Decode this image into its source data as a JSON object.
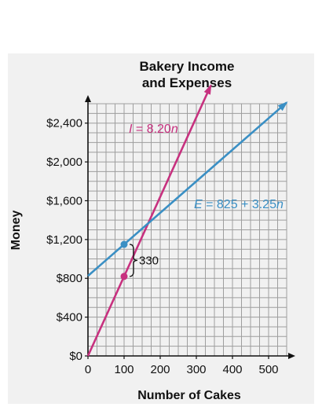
{
  "chart_data": {
    "type": "line",
    "title_lines": [
      "Bakery Income",
      "and Expenses"
    ],
    "xlabel": "Number of Cakes",
    "ylabel": "Money",
    "xlim": [
      0,
      550
    ],
    "ylim": [
      0,
      2600
    ],
    "x_ticks": [
      0,
      100,
      200,
      300,
      400,
      500
    ],
    "x_tick_labels": [
      "0",
      "100",
      "200",
      "300",
      "400",
      "500"
    ],
    "y_ticks": [
      0,
      400,
      800,
      1200,
      1600,
      2000,
      2400
    ],
    "y_tick_labels": [
      "$0",
      "$400",
      "$800",
      "$1,200",
      "$1,600",
      "$2,000",
      "$2,400"
    ],
    "grid": true,
    "series": [
      {
        "label_prefix": "I",
        "label_rest": " = 8.20",
        "label_var": "n",
        "slope": 8.2,
        "intercept": 0,
        "x_range": [
          0,
          340
        ],
        "color": "#c7317f"
      },
      {
        "label_prefix": "E",
        "label_rest": " = 825 + 3.25",
        "label_var": "n",
        "slope": 3.25,
        "intercept": 825,
        "x_range": [
          0,
          550
        ],
        "color": "#3a8fc4"
      }
    ],
    "annotations": [
      {
        "x": 100,
        "y_low": 820,
        "y_high": 1150,
        "text": "330"
      }
    ],
    "points": [
      {
        "x": 100,
        "y": 1150,
        "color": "#3a8fc4"
      },
      {
        "x": 100,
        "y": 820,
        "color": "#c7317f"
      }
    ]
  }
}
